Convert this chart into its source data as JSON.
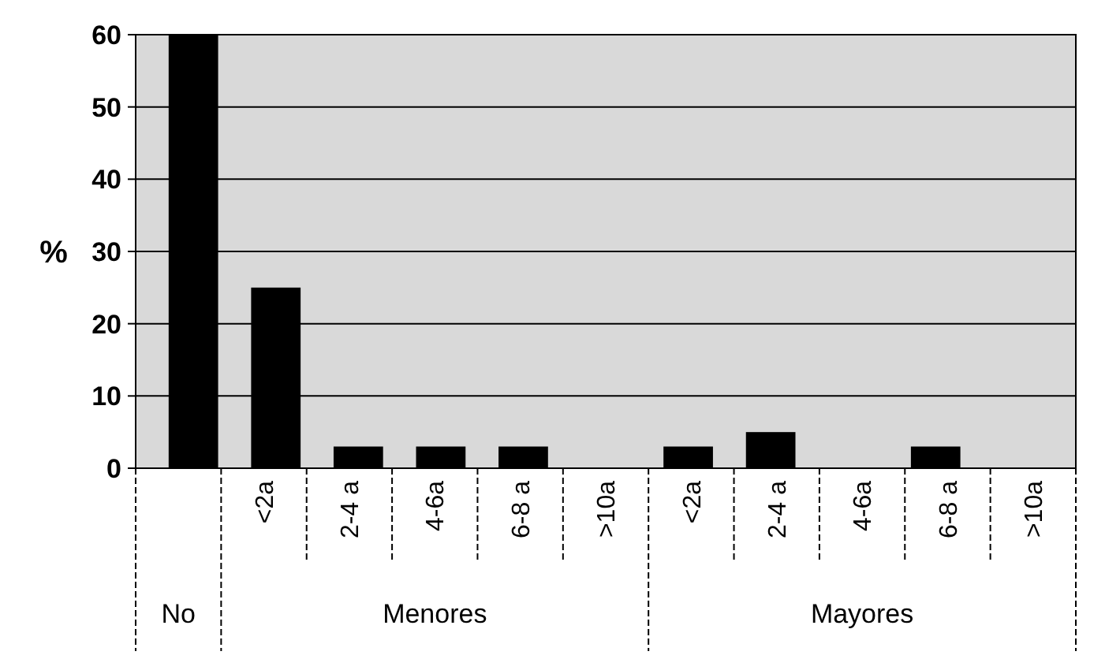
{
  "chart_data": {
    "type": "bar",
    "ylabel": "%",
    "categories": [
      null,
      "<2a",
      "2-4 a",
      "4-6a",
      "6-8 a",
      ">10a",
      "<2a",
      "2-4 a",
      "4-6a",
      "6-8 a",
      ">10a"
    ],
    "values": [
      60,
      25,
      3,
      3,
      3,
      0,
      3,
      5,
      0,
      3,
      0
    ],
    "color": "#000000",
    "ylim": [
      0,
      60
    ],
    "yticks": [
      0,
      10,
      20,
      30,
      40,
      50,
      60
    ],
    "grid": "y",
    "annotations": [
      "No",
      "Menores",
      "Mayores"
    ]
  }
}
